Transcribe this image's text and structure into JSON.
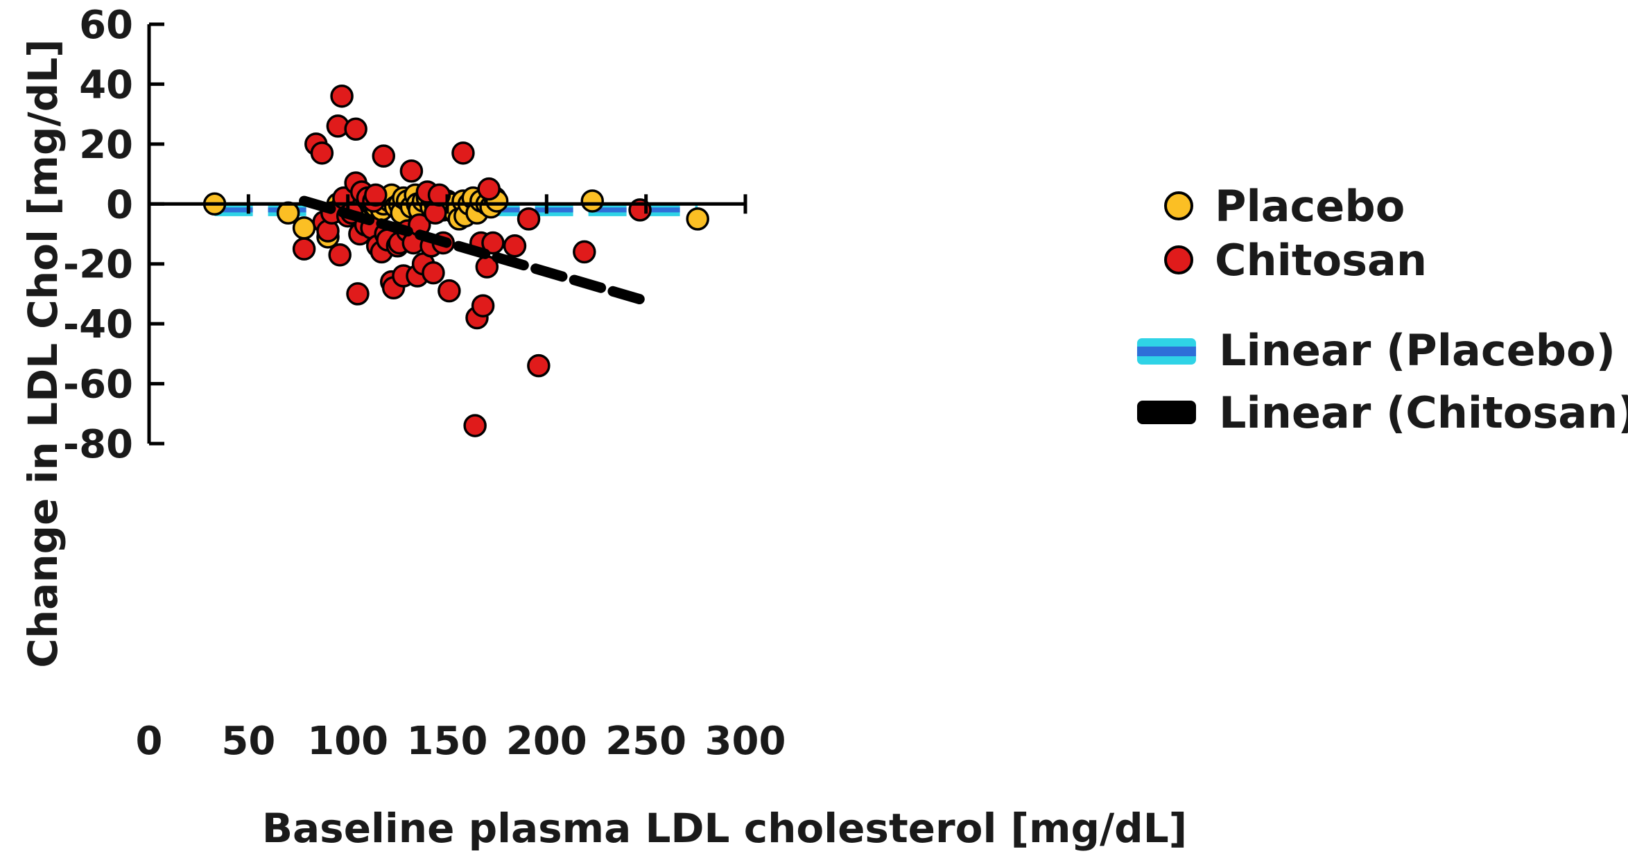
{
  "chart_data": {
    "type": "scatter",
    "title": "",
    "xlabel": "Baseline plasma LDL cholesterol [mg/dL]",
    "ylabel": "Change in LDL Chol [mg/dL]",
    "xlim": [
      0,
      300
    ],
    "ylim": [
      -80,
      60
    ],
    "xticks": [
      0,
      50,
      100,
      150,
      200,
      250,
      300
    ],
    "yticks": [
      -80,
      -60,
      -40,
      -20,
      0,
      20,
      40,
      60
    ],
    "grid": false,
    "legend_position": "right",
    "colors": {
      "placebo_fill": "#FBBF24",
      "chitosan_fill": "#E01B1B",
      "placebo_trend_outer": "#2FD3E6",
      "placebo_trend_inner": "#2E6FD8",
      "chitosan_trend": "#000000",
      "axis": "#000000"
    },
    "series": [
      {
        "name": "Placebo",
        "marker": "circle",
        "points": [
          [
            33,
            0
          ],
          [
            70,
            -3
          ],
          [
            78,
            -8
          ],
          [
            90,
            -11
          ],
          [
            92,
            -3
          ],
          [
            95,
            0
          ],
          [
            97,
            -1
          ],
          [
            99,
            -3
          ],
          [
            100,
            -2
          ],
          [
            101,
            0
          ],
          [
            103,
            1
          ],
          [
            105,
            2
          ],
          [
            106,
            3
          ],
          [
            108,
            -2
          ],
          [
            110,
            1
          ],
          [
            112,
            0
          ],
          [
            114,
            -1
          ],
          [
            115,
            1
          ],
          [
            117,
            -2
          ],
          [
            118,
            0
          ],
          [
            120,
            2
          ],
          [
            121,
            1
          ],
          [
            122,
            3
          ],
          [
            124,
            -1
          ],
          [
            126,
            0
          ],
          [
            127,
            -3
          ],
          [
            128,
            2
          ],
          [
            130,
            1
          ],
          [
            132,
            -1
          ],
          [
            134,
            3
          ],
          [
            135,
            0
          ],
          [
            136,
            -2
          ],
          [
            138,
            1
          ],
          [
            140,
            2
          ],
          [
            142,
            -1
          ],
          [
            144,
            0
          ],
          [
            146,
            2
          ],
          [
            148,
            -2
          ],
          [
            150,
            1
          ],
          [
            152,
            0
          ],
          [
            154,
            -3
          ],
          [
            156,
            -5
          ],
          [
            158,
            1
          ],
          [
            159,
            -4
          ],
          [
            161,
            0
          ],
          [
            163,
            2
          ],
          [
            165,
            -3
          ],
          [
            167,
            1
          ],
          [
            170,
            0
          ],
          [
            172,
            -1
          ],
          [
            174,
            2
          ],
          [
            175,
            1
          ],
          [
            223,
            1
          ],
          [
            276,
            -5
          ]
        ]
      },
      {
        "name": "Chitosan",
        "marker": "circle",
        "points": [
          [
            78,
            -15
          ],
          [
            84,
            20
          ],
          [
            87,
            17
          ],
          [
            88,
            -6
          ],
          [
            90,
            -9
          ],
          [
            92,
            -3
          ],
          [
            95,
            26
          ],
          [
            96,
            -17
          ],
          [
            97,
            36
          ],
          [
            98,
            2
          ],
          [
            100,
            -4
          ],
          [
            102,
            -3
          ],
          [
            104,
            25
          ],
          [
            105,
            -30
          ],
          [
            104,
            7
          ],
          [
            106,
            -10
          ],
          [
            107,
            4
          ],
          [
            109,
            -7
          ],
          [
            110,
            2
          ],
          [
            112,
            -8
          ],
          [
            113,
            1
          ],
          [
            114,
            3
          ],
          [
            115,
            -14
          ],
          [
            117,
            -16
          ],
          [
            118,
            16
          ],
          [
            119,
            -10
          ],
          [
            120,
            -12
          ],
          [
            122,
            -26
          ],
          [
            123,
            -28
          ],
          [
            125,
            -14
          ],
          [
            126,
            -13
          ],
          [
            128,
            -24
          ],
          [
            130,
            -9
          ],
          [
            132,
            11
          ],
          [
            133,
            -13
          ],
          [
            135,
            -24
          ],
          [
            136,
            -7
          ],
          [
            138,
            -20
          ],
          [
            140,
            4
          ],
          [
            142,
            -14
          ],
          [
            143,
            -23
          ],
          [
            144,
            -3
          ],
          [
            146,
            3
          ],
          [
            148,
            -13
          ],
          [
            151,
            -29
          ],
          [
            158,
            17
          ],
          [
            164,
            -74
          ],
          [
            165,
            -38
          ],
          [
            167,
            -13
          ],
          [
            168,
            -34
          ],
          [
            170,
            -21
          ],
          [
            171,
            5
          ],
          [
            173,
            -13
          ],
          [
            184,
            -14
          ],
          [
            191,
            -5
          ],
          [
            196,
            -54
          ],
          [
            219,
            -16
          ],
          [
            247,
            -2
          ]
        ]
      }
    ],
    "trendlines": [
      {
        "name": "Linear (Placebo)",
        "style": "dashed",
        "x": [
          33,
          276
        ],
        "y": [
          -2,
          -2
        ]
      },
      {
        "name": "Linear (Chitosan)",
        "style": "dashed",
        "x": [
          78,
          248
        ],
        "y": [
          1,
          -32
        ]
      }
    ]
  }
}
